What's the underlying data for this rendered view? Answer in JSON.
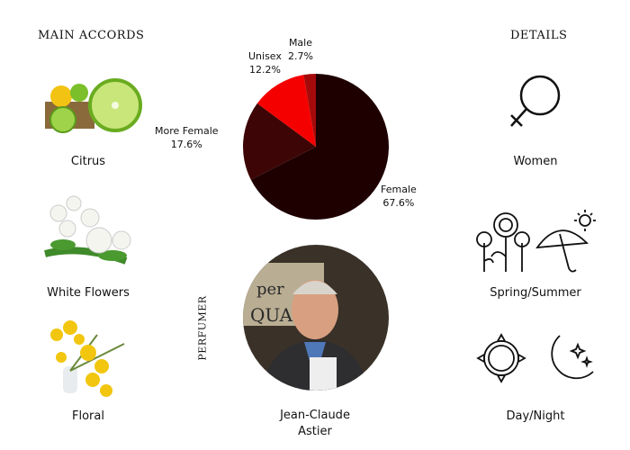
{
  "accords": {
    "title": "MAIN ACCORDS",
    "items": [
      {
        "label": "Citrus",
        "icon": "citrus-image"
      },
      {
        "label": "White Flowers",
        "icon": "white-flowers-image"
      },
      {
        "label": "Floral",
        "icon": "floral-mimosa-image"
      }
    ]
  },
  "details": {
    "title": "DETAILS",
    "items": [
      {
        "label": "Women",
        "icon": "venus-icon"
      },
      {
        "label": "Spring/Summer",
        "icon": "spring-summer-icon"
      },
      {
        "label": "Day/Night",
        "icon": "day-night-icon"
      }
    ]
  },
  "perfumer": {
    "title": "PERFUMER",
    "first": "Jean-Claude",
    "last": "Astier"
  },
  "chart_data": {
    "type": "pie",
    "categories": [
      "Female",
      "More Female",
      "Unisex",
      "Male"
    ],
    "values": [
      67.6,
      17.6,
      12.2,
      2.7
    ],
    "labels": [
      "67.6%",
      "17.6%",
      "12.2%",
      "2.7%"
    ],
    "colors": [
      "#1f0000",
      "#3d0505",
      "#f50000",
      "#a50a0a"
    ],
    "start": "top",
    "direction": "clockwise"
  }
}
